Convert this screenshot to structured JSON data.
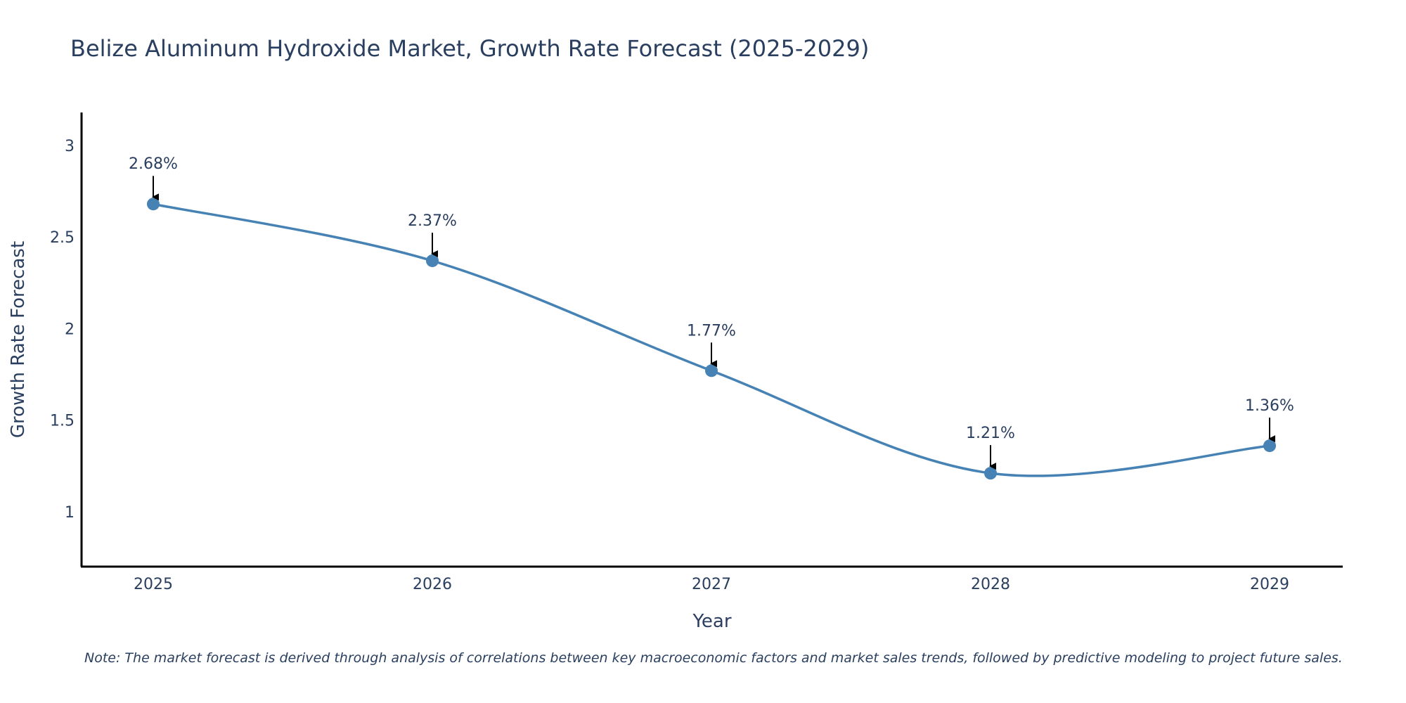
{
  "chart_data": {
    "type": "line",
    "title": "Belize Aluminum Hydroxide Market, Growth Rate Forecast (2025-2029)",
    "xlabel": "Year",
    "ylabel": "Growth Rate Forecast",
    "categories": [
      "2025",
      "2026",
      "2027",
      "2028",
      "2029"
    ],
    "values": [
      2.68,
      2.37,
      1.77,
      1.21,
      1.36
    ],
    "data_labels": [
      "2.68%",
      "2.37%",
      "1.77%",
      "1.21%",
      "1.36%"
    ],
    "ylim": [
      0.7,
      3.18
    ],
    "yticks": [
      1,
      1.5,
      2,
      2.5,
      3
    ],
    "ytick_labels": [
      "1",
      "1.5",
      "2",
      "2.5",
      "3"
    ],
    "grid": false,
    "line_color": "#4682b4",
    "marker_color": "#4682b4",
    "note": "Note: The market forecast is derived through analysis of correlations between key macroeconomic factors and market sales trends, followed by predictive modeling to project future sales."
  }
}
